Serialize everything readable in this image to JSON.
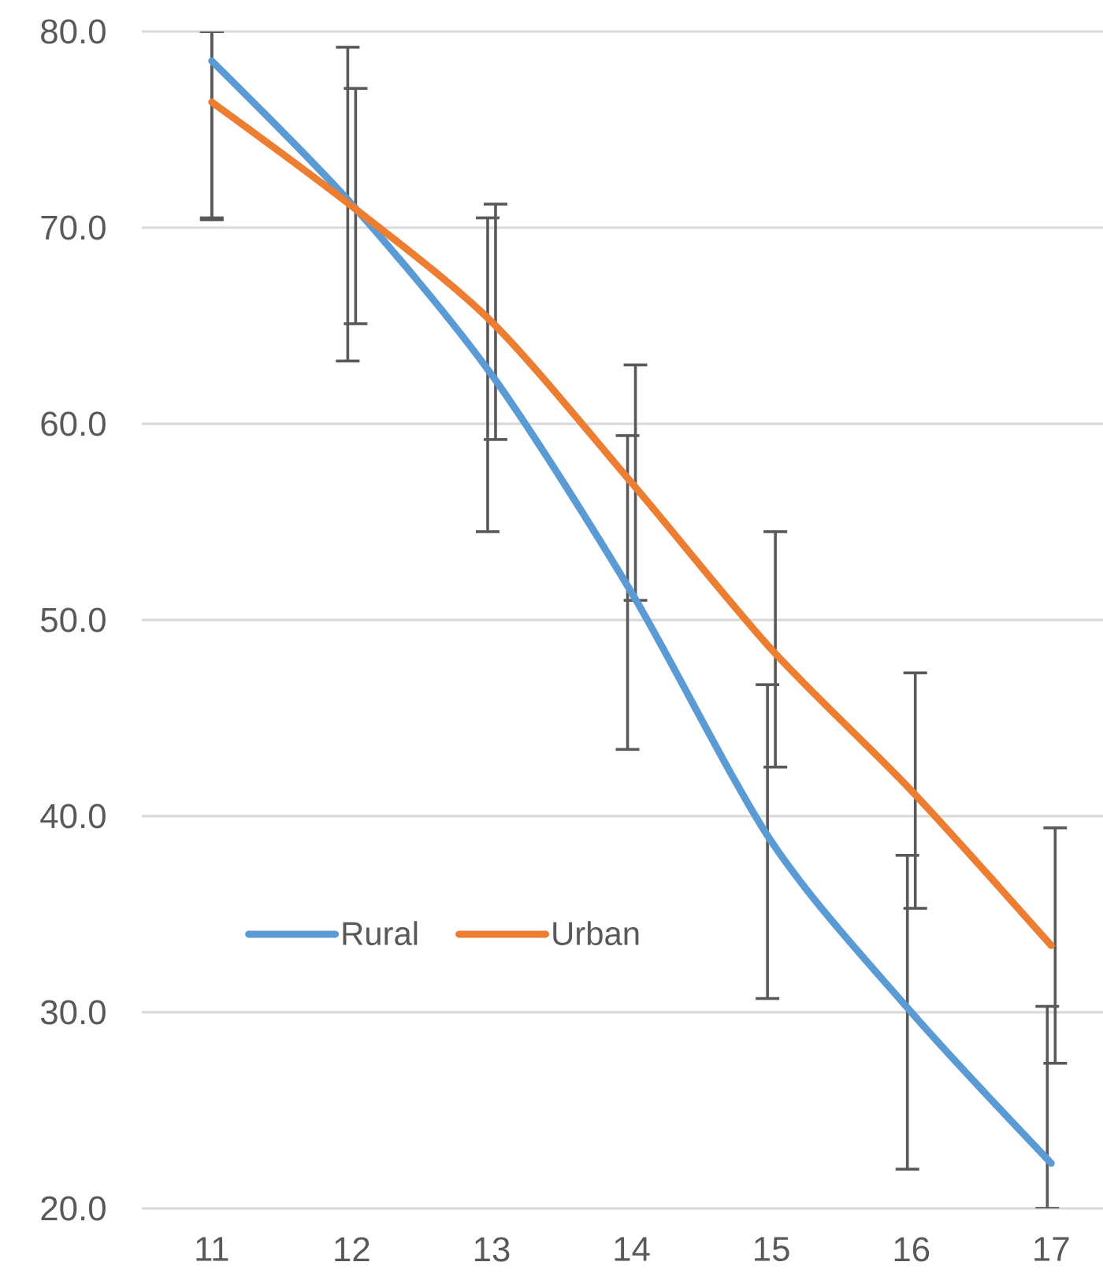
{
  "chart_data": {
    "type": "line",
    "categories": [
      "11",
      "12",
      "13",
      "14",
      "15",
      "16",
      "17"
    ],
    "series": [
      {
        "name": "Rural",
        "color": "#5b9bd5",
        "values": [
          78.5,
          71.2,
          62.5,
          51.4,
          38.7,
          30.0,
          22.3
        ],
        "errors": [
          [
            70.5,
            80
          ],
          8,
          8,
          8,
          8,
          8,
          [
            20,
            30.3
          ]
        ]
      },
      {
        "name": "Urban",
        "color": "#ed7d31",
        "values": [
          76.4,
          71.1,
          65.2,
          57.0,
          48.5,
          41.3,
          33.4
        ],
        "errors": [
          [
            70.4,
            80
          ],
          6,
          6,
          6,
          6,
          6,
          6
        ]
      }
    ],
    "ylim": [
      20,
      80
    ],
    "yticks": [
      {
        "value": 20,
        "label": "20.0"
      },
      {
        "value": 30,
        "label": "30.0"
      },
      {
        "value": 40,
        "label": "40.0"
      },
      {
        "value": 50,
        "label": "50.0"
      },
      {
        "value": 60,
        "label": "60.0"
      },
      {
        "value": 70,
        "label": "70.0"
      },
      {
        "value": 80,
        "label": "80.0"
      }
    ],
    "grid": "y",
    "legend": "bottom left",
    "marker": "none",
    "line_style": "solid"
  }
}
